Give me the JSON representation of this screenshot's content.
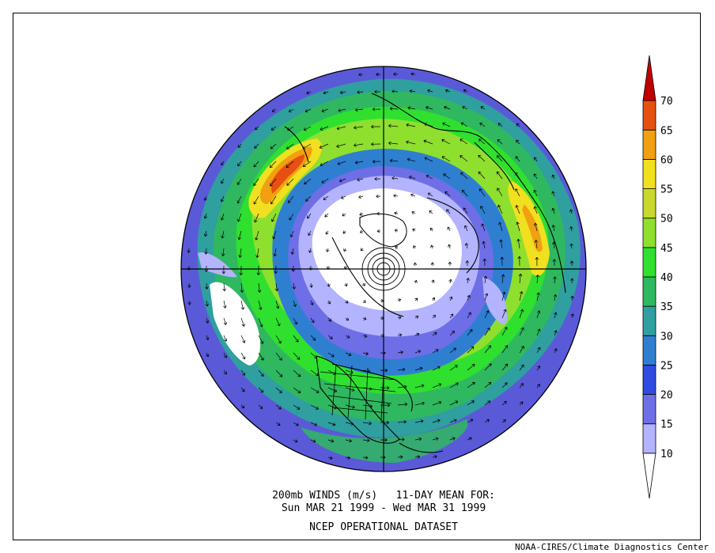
{
  "caption": {
    "line1": "200mb WINDS (m/s)   11-DAY MEAN FOR:",
    "line2": "Sun MAR 21 1999 - Wed MAR 31 1999",
    "line3": "NCEP OPERATIONAL DATASET"
  },
  "footer": "NOAA-CIRES/Climate Diagnostics Center",
  "colorbar": {
    "labels": [
      "10",
      "15",
      "20",
      "25",
      "30",
      "35",
      "40",
      "45",
      "50",
      "55",
      "60",
      "65",
      "70"
    ],
    "colors": [
      "#ffffff",
      "#b3b3ff",
      "#6e6ee6",
      "#2f4be0",
      "#2f7fd1",
      "#2f9f9f",
      "#2fb85f",
      "#2fe02f",
      "#8fdf2f",
      "#c8d82f",
      "#f0e020",
      "#f0a010",
      "#e65010",
      "#c00000"
    ]
  },
  "map": {
    "projection": "north polar stereographic",
    "jet_core": [
      "Pacific jet (60-65 m/s)",
      "Asian jet (60-65 m/s)"
    ]
  }
}
